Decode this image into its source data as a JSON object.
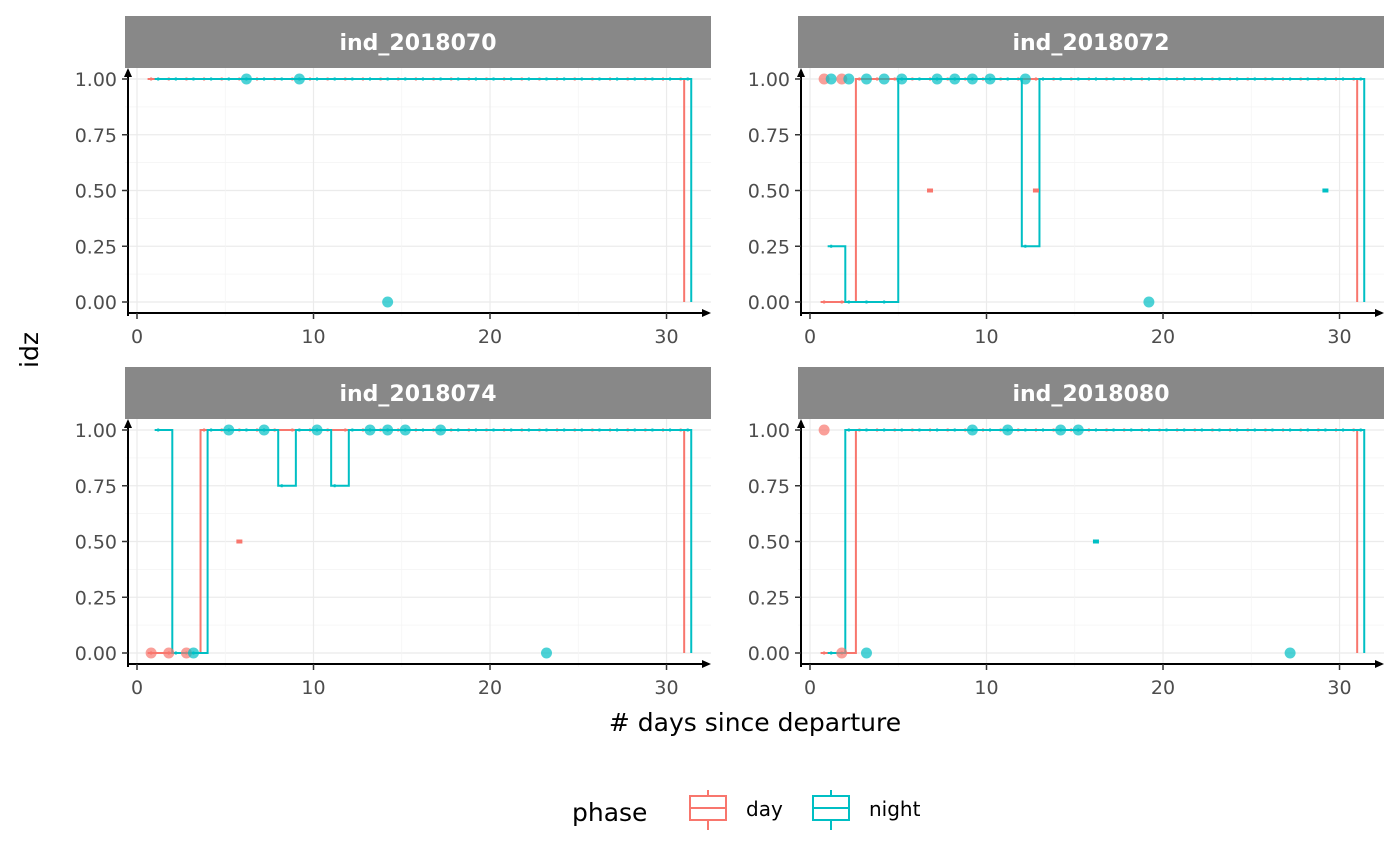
{
  "chart_data": {
    "type": "boxplot",
    "xlabel": "# days since departure",
    "ylabel": "idz",
    "xlim": [
      0,
      31.5
    ],
    "ylim": [
      0,
      1
    ],
    "x_ticks": [
      0,
      10,
      20,
      30
    ],
    "y_ticks": [
      "0.00",
      "0.25",
      "0.50",
      "0.75",
      "1.00"
    ],
    "grid": true,
    "legend": {
      "title": "phase",
      "position": "bottom",
      "entries": [
        {
          "label": "day",
          "color": "#F8766D"
        },
        {
          "label": "night",
          "color": "#00BFC4"
        }
      ]
    },
    "panels": [
      {
        "title": "ind_2018070",
        "day": [
          1,
          1,
          1,
          1,
          1,
          1,
          1,
          1,
          1,
          1,
          1,
          1,
          1,
          1,
          1,
          1,
          1,
          1,
          1,
          1,
          1,
          1,
          1,
          1,
          1,
          1,
          1,
          1,
          1,
          1,
          1
        ],
        "night": [
          1,
          1,
          1,
          1,
          1,
          1,
          1,
          1,
          1,
          1,
          1,
          1,
          1,
          1,
          1,
          1,
          1,
          1,
          1,
          1,
          1,
          1,
          1,
          1,
          1,
          1,
          1,
          1,
          1,
          1,
          1
        ],
        "outliers": [
          {
            "x": 6.2,
            "y": 1,
            "phase": "night"
          },
          {
            "x": 9.2,
            "y": 1,
            "phase": "night"
          },
          {
            "x": 14.2,
            "y": 0,
            "phase": "night"
          }
        ]
      },
      {
        "title": "ind_2018072",
        "day": [
          0,
          0,
          1,
          1,
          1,
          1,
          1,
          1,
          1,
          1,
          1,
          1,
          1,
          1,
          1,
          1,
          1,
          1,
          1,
          1,
          1,
          1,
          1,
          1,
          1,
          1,
          1,
          1,
          1,
          1,
          1
        ],
        "night": [
          0.25,
          0,
          0,
          0,
          1,
          1,
          1,
          1,
          1,
          1,
          1,
          0.25,
          1,
          1,
          1,
          1,
          1,
          1,
          1,
          1,
          1,
          1,
          1,
          1,
          1,
          1,
          1,
          1,
          1,
          1,
          1
        ],
        "medians": [
          {
            "x": 6.8,
            "y": 0.5,
            "phase": "day"
          },
          {
            "x": 12.8,
            "y": 0.5,
            "phase": "day"
          },
          {
            "x": 29.2,
            "y": 0.5,
            "phase": "night"
          }
        ],
        "outliers": [
          {
            "x": 0.8,
            "y": 1,
            "phase": "day"
          },
          {
            "x": 1.2,
            "y": 1,
            "phase": "night"
          },
          {
            "x": 1.8,
            "y": 1,
            "phase": "day"
          },
          {
            "x": 2.2,
            "y": 1,
            "phase": "night"
          },
          {
            "x": 3.2,
            "y": 1,
            "phase": "night"
          },
          {
            "x": 4.2,
            "y": 1,
            "phase": "night"
          },
          {
            "x": 5.2,
            "y": 1,
            "phase": "night"
          },
          {
            "x": 7.2,
            "y": 1,
            "phase": "night"
          },
          {
            "x": 8.2,
            "y": 1,
            "phase": "night"
          },
          {
            "x": 9.2,
            "y": 1,
            "phase": "night"
          },
          {
            "x": 10.2,
            "y": 1,
            "phase": "night"
          },
          {
            "x": 12.2,
            "y": 1,
            "phase": "night"
          },
          {
            "x": 19.2,
            "y": 0,
            "phase": "night"
          }
        ]
      },
      {
        "title": "ind_2018074",
        "day": [
          0,
          0,
          0,
          1,
          1,
          1,
          1,
          1,
          1,
          1,
          1,
          1,
          1,
          1,
          1,
          1,
          1,
          1,
          1,
          1,
          1,
          1,
          1,
          1,
          1,
          1,
          1,
          1,
          1,
          1,
          1
        ],
        "night": [
          1,
          0,
          0,
          1,
          1,
          1,
          1,
          0.75,
          1,
          1,
          0.75,
          1,
          1,
          1,
          1,
          1,
          1,
          1,
          1,
          1,
          1,
          1,
          1,
          1,
          1,
          1,
          1,
          1,
          1,
          1,
          1
        ],
        "medians": [
          {
            "x": 5.8,
            "y": 0.5,
            "phase": "day"
          }
        ],
        "outliers": [
          {
            "x": 0.8,
            "y": 0,
            "phase": "day"
          },
          {
            "x": 1.8,
            "y": 0,
            "phase": "day"
          },
          {
            "x": 2.8,
            "y": 0,
            "phase": "day"
          },
          {
            "x": 3.2,
            "y": 0,
            "phase": "night"
          },
          {
            "x": 5.2,
            "y": 1,
            "phase": "night"
          },
          {
            "x": 7.2,
            "y": 1,
            "phase": "night"
          },
          {
            "x": 10.2,
            "y": 1,
            "phase": "night"
          },
          {
            "x": 13.2,
            "y": 1,
            "phase": "night"
          },
          {
            "x": 14.2,
            "y": 1,
            "phase": "night"
          },
          {
            "x": 15.2,
            "y": 1,
            "phase": "night"
          },
          {
            "x": 17.2,
            "y": 1,
            "phase": "night"
          },
          {
            "x": 23.2,
            "y": 0,
            "phase": "night"
          }
        ]
      },
      {
        "title": "ind_2018080",
        "day": [
          0,
          0,
          1,
          1,
          1,
          1,
          1,
          1,
          1,
          1,
          1,
          1,
          1,
          1,
          1,
          1,
          1,
          1,
          1,
          1,
          1,
          1,
          1,
          1,
          1,
          1,
          1,
          1,
          1,
          1,
          1
        ],
        "night": [
          0,
          1,
          1,
          1,
          1,
          1,
          1,
          1,
          1,
          1,
          1,
          1,
          1,
          1,
          1,
          1,
          1,
          1,
          1,
          1,
          1,
          1,
          1,
          1,
          1,
          1,
          1,
          1,
          1,
          1,
          1
        ],
        "medians": [
          {
            "x": 16.2,
            "y": 0.5,
            "phase": "night"
          }
        ],
        "outliers": [
          {
            "x": 0.8,
            "y": 1,
            "phase": "day"
          },
          {
            "x": 1.8,
            "y": 0,
            "phase": "day"
          },
          {
            "x": 3.2,
            "y": 0,
            "phase": "night"
          },
          {
            "x": 9.2,
            "y": 1,
            "phase": "night"
          },
          {
            "x": 11.2,
            "y": 1,
            "phase": "night"
          },
          {
            "x": 14.2,
            "y": 1,
            "phase": "night"
          },
          {
            "x": 15.2,
            "y": 1,
            "phase": "night"
          },
          {
            "x": 27.2,
            "y": 0,
            "phase": "night"
          }
        ]
      }
    ]
  }
}
